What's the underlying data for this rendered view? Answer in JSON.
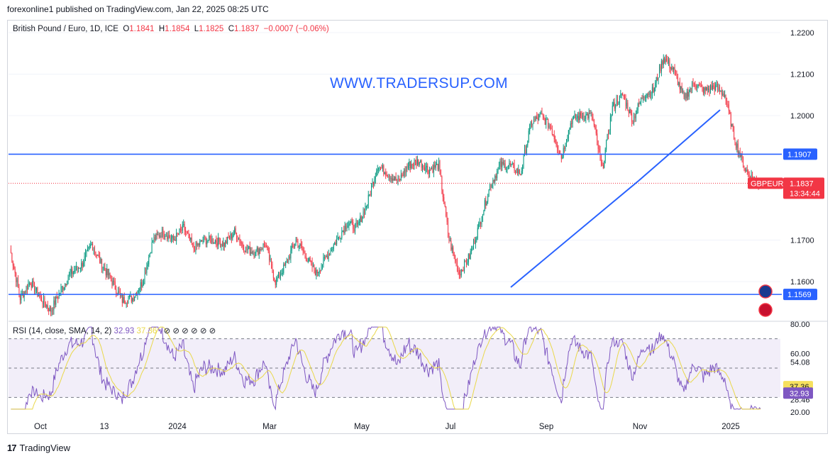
{
  "header": {
    "published": "forexonline1 published on TradingView.com, Jan 22, 2025 08:25 UTC"
  },
  "legend": {
    "symbol": "British Pound / Euro, 1D, ICE",
    "o_label": "O",
    "o": "1.1841",
    "h_label": "H",
    "h": "1.1854",
    "l_label": "L",
    "l": "1.1825",
    "c_label": "C",
    "c": "1.1837",
    "change": "−0.0007 (−0.06%)"
  },
  "watermark": "WWW.TRADERSUP.COM",
  "rsi_legend": {
    "name": "RSI (14, close, SMA, 14, 2)",
    "rsi": "32.93",
    "sma": "37.36"
  },
  "footer": {
    "brand": "TradingView",
    "logo": "17"
  },
  "colors": {
    "up": "#089981",
    "down": "#f23645",
    "line": "#2962ff",
    "rsi": "#7e57c2",
    "rsi_sma": "#e9d84a"
  },
  "chart_data": {
    "type": "candlestick",
    "price_axis": {
      "ticks": [
        "1.2200",
        "1.2100",
        "1.2000",
        "1.1700",
        "1.1600"
      ],
      "ylim": [
        1.1545,
        1.2215
      ]
    },
    "time_axis": {
      "labels": [
        "Oct",
        "13",
        "2024",
        "Mar",
        "May",
        "Jul",
        "Sep",
        "Nov",
        "2025"
      ]
    },
    "horizontal_lines": [
      {
        "value": "1.1907"
      },
      {
        "value": "1.1569"
      }
    ],
    "trendlines": [
      {
        "points": [
          [
            "Aug",
            1.159
          ],
          [
            "Oct 31",
            1.1845
          ],
          [
            "Dec",
            1.2015
          ]
        ]
      }
    ],
    "last_price": {
      "value": "1.1837",
      "symbol": "GBPEUR",
      "countdown": "13:34:44"
    },
    "close_path": [
      [
        0,
        1.168
      ],
      [
        10,
        1.156
      ],
      [
        20,
        1.16
      ],
      [
        30,
        1.156
      ],
      [
        40,
        1.153
      ],
      [
        50,
        1.158
      ],
      [
        60,
        1.162
      ],
      [
        70,
        1.164
      ],
      [
        80,
        1.169
      ],
      [
        90,
        1.164
      ],
      [
        100,
        1.16
      ],
      [
        110,
        1.1555
      ],
      [
        120,
        1.156
      ],
      [
        130,
        1.16
      ],
      [
        140,
        1.17
      ],
      [
        150,
        1.172
      ],
      [
        160,
        1.17
      ],
      [
        170,
        1.173
      ],
      [
        180,
        1.168
      ],
      [
        190,
        1.17
      ],
      [
        200,
        1.17
      ],
      [
        210,
        1.169
      ],
      [
        220,
        1.172
      ],
      [
        230,
        1.168
      ],
      [
        240,
        1.167
      ],
      [
        250,
        1.169
      ],
      [
        260,
        1.16
      ],
      [
        270,
        1.164
      ],
      [
        280,
        1.17
      ],
      [
        290,
        1.166
      ],
      [
        300,
        1.162
      ],
      [
        310,
        1.166
      ],
      [
        320,
        1.17
      ],
      [
        330,
        1.174
      ],
      [
        340,
        1.173
      ],
      [
        350,
        1.179
      ],
      [
        360,
        1.188
      ],
      [
        370,
        1.186
      ],
      [
        380,
        1.184
      ],
      [
        390,
        1.188
      ],
      [
        400,
        1.189
      ],
      [
        410,
        1.187
      ],
      [
        420,
        1.188
      ],
      [
        430,
        1.17
      ],
      [
        440,
        1.162
      ],
      [
        450,
        1.166
      ],
      [
        460,
        1.174
      ],
      [
        470,
        1.183
      ],
      [
        480,
        1.188
      ],
      [
        490,
        1.188
      ],
      [
        500,
        1.186
      ],
      [
        510,
        1.198
      ],
      [
        520,
        1.2
      ],
      [
        530,
        1.197
      ],
      [
        540,
        1.19
      ],
      [
        550,
        1.199
      ],
      [
        560,
        1.2
      ],
      [
        570,
        1.2
      ],
      [
        580,
        1.187
      ],
      [
        590,
        1.202
      ],
      [
        600,
        1.205
      ],
      [
        610,
        1.199
      ],
      [
        620,
        1.205
      ],
      [
        630,
        1.206
      ],
      [
        640,
        1.214
      ],
      [
        650,
        1.211
      ],
      [
        660,
        1.204
      ],
      [
        670,
        1.208
      ],
      [
        680,
        1.206
      ],
      [
        690,
        1.207
      ],
      [
        700,
        1.205
      ],
      [
        710,
        1.194
      ],
      [
        720,
        1.187
      ],
      [
        730,
        1.184
      ],
      [
        735,
        1.1837
      ]
    ],
    "rsi": {
      "ticks": [
        "80.00",
        "60.00",
        "54.08",
        "28.46",
        "20.00"
      ],
      "levels": [
        70,
        50,
        30
      ],
      "last_rsi": "32.93",
      "last_sma": "37.36",
      "ylim": [
        20,
        80
      ]
    }
  }
}
